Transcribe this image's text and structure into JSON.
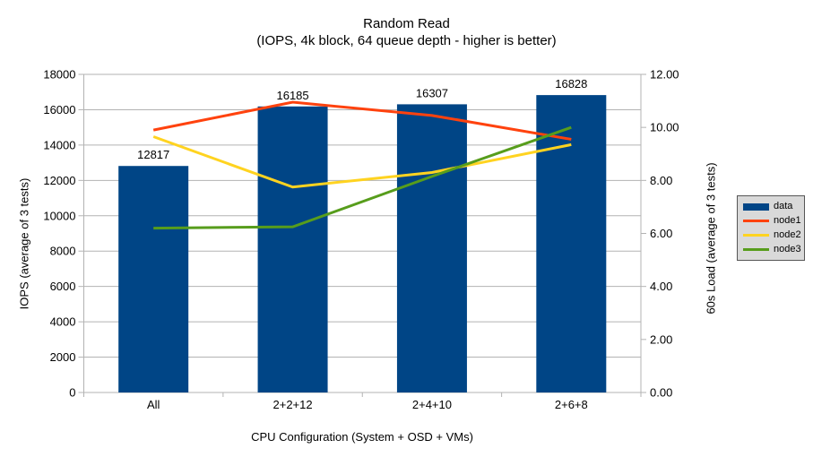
{
  "title": "Random Read",
  "subtitle": "(IOPS, 4k block, 64 queue depth - higher is better)",
  "chart_data": {
    "type": "bar",
    "subtype": "bar-and-line-dual-axis",
    "categories": [
      "All",
      "2+2+12",
      "2+4+10",
      "2+6+8"
    ],
    "bar_series": {
      "name": "data",
      "axis": "left",
      "color": "#004586",
      "values": [
        12817,
        16185,
        16307,
        16828
      ],
      "data_labels": [
        "12817",
        "16185",
        "16307",
        "16828"
      ]
    },
    "line_series": [
      {
        "name": "node1",
        "axis": "right",
        "color": "#ff420e",
        "values": [
          9.9,
          10.95,
          10.45,
          9.55
        ]
      },
      {
        "name": "node2",
        "axis": "right",
        "color": "#ffd320",
        "values": [
          9.65,
          7.75,
          8.3,
          9.35
        ]
      },
      {
        "name": "node3",
        "axis": "right",
        "color": "#579d1c",
        "values": [
          6.2,
          6.25,
          8.15,
          10.0
        ]
      }
    ],
    "left_axis": {
      "title": "IOPS (average of 3 tests)",
      "min": 0,
      "max": 18000,
      "step": 2000,
      "decimals": 0
    },
    "right_axis": {
      "title": "60s Load (average of 3 tests)",
      "min": 0,
      "max": 12,
      "step": 2,
      "decimals": 2
    },
    "xlabel": "CPU Configuration (System + OSD + VMs)",
    "grid": {
      "horizontal": true,
      "color": "#b3b3b3"
    },
    "legend": {
      "position": "right",
      "background": "#d9d9d9",
      "entries": [
        {
          "label": "data",
          "color": "#004586",
          "type": "box"
        },
        {
          "label": "node1",
          "color": "#ff420e",
          "type": "line"
        },
        {
          "label": "node2",
          "color": "#ffd320",
          "type": "line"
        },
        {
          "label": "node3",
          "color": "#579d1c",
          "type": "line"
        }
      ]
    }
  },
  "colors": {
    "background": "#ffffff",
    "text": "#000000",
    "axis_and_grid": "#b3b3b3",
    "legend_background": "#d9d9d9",
    "legend_border": "#565656"
  }
}
